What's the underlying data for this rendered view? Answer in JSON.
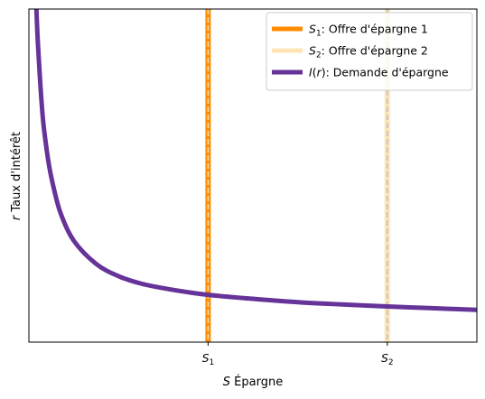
{
  "chart_data": {
    "type": "line",
    "xlabel": "S Épargne",
    "xlabel_var": "S",
    "xlabel_text": " Épargne",
    "ylabel": "r Taux d'intérêt",
    "ylabel_var": "r",
    "ylabel_text": " Taux d'intérêt",
    "xlim": [
      0,
      10
    ],
    "ylim": [
      0,
      10
    ],
    "x_ticks": [
      {
        "value": 4,
        "var": "S",
        "sub": "1"
      },
      {
        "value": 8,
        "var": "S",
        "sub": "2"
      }
    ],
    "y_ticks": [],
    "grid": false,
    "legend_position": "top-right",
    "series": [
      {
        "name": "S₁: Offre d'épargne 1",
        "legend_var": "S",
        "legend_sub": "1",
        "legend_rest": ": Offre d'épargne 1",
        "kind": "vertical",
        "x": 4,
        "color": "#ff8c00",
        "dash_color": "#f5deb3"
      },
      {
        "name": "S₂: Offre d'épargne 2",
        "legend_var": "S",
        "legend_sub": "2",
        "legend_rest": ": Offre d'épargne 2",
        "kind": "vertical",
        "x": 8,
        "color": "#ffe4b5",
        "dash_color": "#c0c0c0"
      },
      {
        "name": "I(r): Demande d'épargne",
        "legend_var": "I",
        "legend_paren": "(r)",
        "legend_rest": ": Demande d'épargne",
        "kind": "curve",
        "x": [
          0.15,
          0.2,
          0.3,
          0.4,
          0.5,
          0.7,
          1.0,
          1.5,
          2.0,
          2.5,
          3.0,
          3.5,
          4.0,
          5.0,
          6.0,
          7.0,
          8.0,
          9.0,
          10.0
        ],
        "y": [
          10.6,
          9.0,
          6.9,
          5.75,
          4.95,
          3.9,
          3.05,
          2.35,
          1.98,
          1.76,
          1.62,
          1.51,
          1.42,
          1.3,
          1.2,
          1.13,
          1.07,
          1.02,
          0.97
        ],
        "color": "#663399"
      }
    ]
  }
}
